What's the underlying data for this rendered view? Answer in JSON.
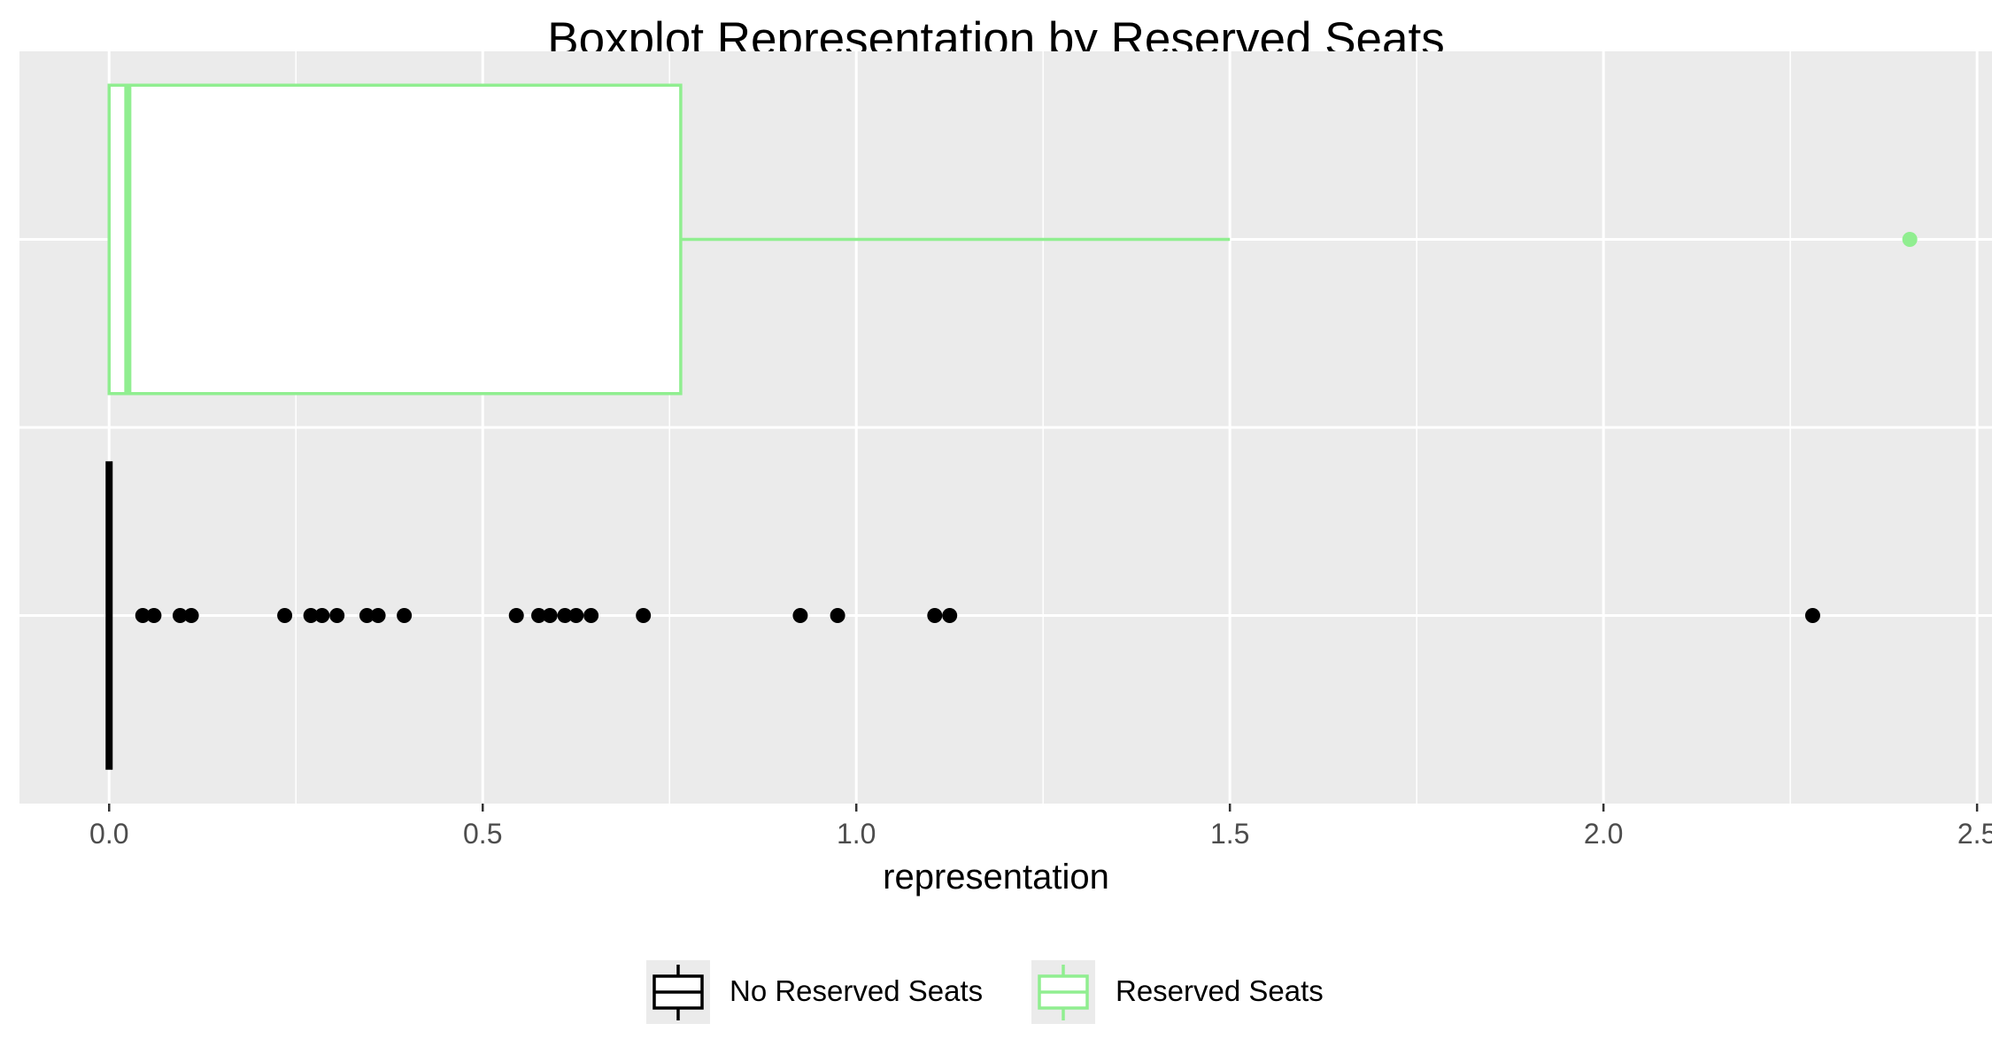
{
  "chart_data": {
    "type": "boxplot",
    "title": "Boxplot Representation by Reserved Seats",
    "xlabel": "representation",
    "ylabel": "",
    "xlim": [
      -0.12,
      2.52
    ],
    "x_ticks": [
      "0.0",
      "0.5",
      "1.0",
      "1.5",
      "2.0",
      "2.5"
    ],
    "x_tick_values": [
      0,
      0.5,
      1.0,
      1.5,
      2.0,
      2.5
    ],
    "grid": true,
    "legend_position": "bottom",
    "series": [
      {
        "name": "No Reserved Seats",
        "color": "#000000",
        "min": 0,
        "q1": 0,
        "median": 0,
        "q3": 0,
        "max": 0,
        "outliers": [
          0.045,
          0.06,
          0.095,
          0.11,
          0.235,
          0.27,
          0.285,
          0.305,
          0.345,
          0.36,
          0.395,
          0.545,
          0.575,
          0.59,
          0.61,
          0.625,
          0.645,
          0.715,
          0.925,
          0.975,
          1.105,
          1.125,
          2.28
        ]
      },
      {
        "name": "Reserved Seats",
        "color": "#90ee90",
        "min": 0,
        "q1": 0,
        "median": 0.025,
        "q3": 0.765,
        "max": 1.5,
        "outliers": [
          2.41
        ]
      }
    ]
  }
}
